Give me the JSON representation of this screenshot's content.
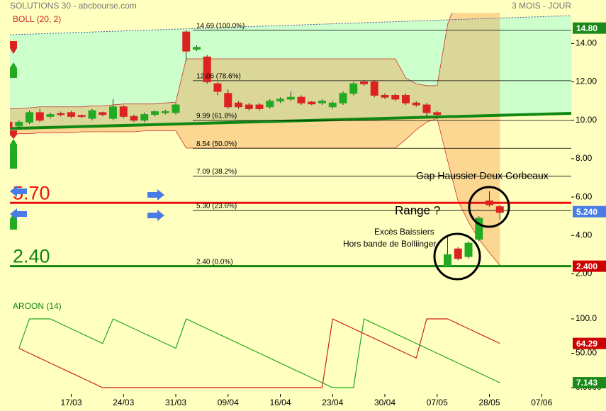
{
  "chart_data": [
    {
      "type": "candlestick",
      "title": "SOLUTIONS 30 - abcbourse.com",
      "period": "3 MOIS - JOUR",
      "indicator": "BOLL (20, 2)",
      "ylim": [
        1.5,
        15.6
      ],
      "yticks": [
        {
          "value": 14,
          "label": "14.00"
        },
        {
          "value": 12,
          "label": "12.00"
        },
        {
          "value": 10,
          "label": "10.00"
        },
        {
          "value": 8,
          "label": "8.00"
        },
        {
          "value": 6,
          "label": "6.00"
        },
        {
          "value": 4,
          "label": "4.00"
        },
        {
          "value": 2,
          "label": "2.00"
        }
      ],
      "open": [
        9.9,
        9.7,
        9.9,
        10.4,
        10.2,
        10.35,
        10.4,
        10.25,
        10.1,
        10.4,
        10.1,
        10.7,
        10.2,
        10.0,
        10.3,
        10.4,
        10.4,
        14.6,
        13.7,
        13.3,
        11.9,
        11.4,
        10.9,
        10.8,
        10.8,
        10.7,
        11.0,
        11.1,
        11.2,
        10.95,
        10.9,
        10.7,
        10.9,
        11.4,
        12.0,
        12.0,
        11.3,
        11.3,
        11.3,
        10.9,
        10.8,
        10.4,
        2.4,
        3.3,
        2.9,
        3.8,
        5.8,
        5.5
      ],
      "high": [
        10.0,
        10.0,
        10.5,
        10.6,
        10.4,
        10.45,
        10.5,
        10.3,
        10.6,
        10.45,
        11.1,
        10.8,
        10.3,
        10.4,
        10.5,
        10.55,
        10.9,
        14.7,
        13.9,
        13.4,
        12.0,
        11.6,
        11.0,
        10.9,
        10.9,
        11.1,
        11.2,
        11.5,
        11.3,
        11.0,
        11.1,
        11.0,
        11.5,
        12.0,
        12.1,
        12.1,
        11.4,
        11.4,
        11.4,
        11.0,
        10.9,
        10.5,
        4.0,
        3.4,
        3.7,
        5.0,
        6.3,
        5.6
      ],
      "low": [
        9.4,
        9.6,
        9.8,
        9.9,
        10.1,
        10.2,
        10.1,
        10.1,
        10.0,
        10.2,
        10.0,
        10.1,
        9.9,
        9.9,
        10.2,
        10.3,
        10.3,
        13.1,
        13.6,
        11.9,
        11.3,
        10.6,
        10.6,
        10.5,
        10.5,
        10.6,
        10.9,
        11.0,
        10.8,
        10.8,
        10.8,
        10.6,
        10.8,
        11.3,
        11.8,
        11.2,
        11.1,
        11.0,
        10.8,
        10.7,
        10.2,
        10.2,
        2.4,
        2.7,
        2.8,
        3.7,
        5.5,
        4.8
      ],
      "close": [
        9.6,
        9.9,
        10.4,
        10.0,
        10.3,
        10.3,
        10.2,
        10.2,
        10.5,
        10.3,
        10.7,
        10.2,
        10.0,
        10.3,
        10.45,
        10.45,
        10.8,
        13.6,
        13.8,
        12.0,
        11.5,
        10.7,
        10.7,
        10.6,
        10.6,
        11.0,
        11.1,
        11.2,
        10.9,
        10.85,
        11.0,
        10.9,
        11.4,
        11.9,
        11.9,
        11.3,
        11.2,
        11.1,
        10.9,
        10.8,
        10.4,
        10.3,
        3.0,
        2.8,
        3.6,
        4.9,
        5.6,
        5.2
      ],
      "up_color": "#22aa22",
      "down_color": "#dd2222",
      "bollinger": {
        "color": "#cc3333",
        "upper": [
          10.6,
          10.6,
          10.65,
          10.7,
          10.7,
          10.7,
          10.7,
          10.7,
          10.75,
          10.75,
          10.8,
          10.85,
          10.85,
          10.85,
          10.85,
          10.9,
          10.95,
          13.2,
          13.2,
          13.2,
          13.2,
          13.2,
          13.2,
          13.2,
          13.2,
          13.2,
          13.2,
          13.2,
          13.2,
          13.2,
          13.2,
          13.2,
          13.2,
          13.2,
          13.2,
          13.2,
          13.2,
          13.2,
          12.2,
          11.9,
          11.8,
          11.8,
          15.0,
          16.5,
          17.5,
          18.0,
          18.5,
          19.0
        ],
        "lower": [
          9.2,
          9.3,
          9.3,
          9.35,
          9.35,
          9.35,
          9.35,
          9.4,
          9.4,
          9.4,
          9.4,
          9.4,
          9.4,
          9.45,
          9.45,
          9.45,
          9.45,
          8.55,
          8.55,
          8.55,
          8.55,
          8.55,
          8.55,
          8.55,
          8.55,
          8.55,
          8.55,
          8.55,
          8.55,
          8.55,
          8.55,
          8.55,
          8.55,
          8.55,
          8.55,
          8.55,
          8.55,
          8.55,
          9.0,
          9.5,
          9.9,
          10.1,
          7.9,
          5.8,
          4.7,
          3.8,
          3.1,
          2.45
        ]
      },
      "trendlines": [
        {
          "start": 14.45,
          "end": 15.45,
          "color": "#4455aa",
          "dashed": true
        },
        {
          "start": 9.57,
          "end": 10.36,
          "color": "#118811",
          "dashed": false
        }
      ],
      "levels": [
        {
          "value": 14.69,
          "label": "14.69  (100.0%)"
        },
        {
          "value": 12.06,
          "label": "12.06  (78.6%)"
        },
        {
          "value": 9.99,
          "label": "9.99  (61.8%)"
        },
        {
          "value": 8.54,
          "label": "8.54  (50.0%)"
        },
        {
          "value": 7.09,
          "label": "7.09  (38.2%)"
        },
        {
          "value": 5.3,
          "label": "5.30  (23.6%)"
        },
        {
          "value": 2.4,
          "label": "2.40  (0.0%)"
        }
      ],
      "supports": [
        {
          "value": 5.7,
          "label": "5.70",
          "color": "#ee1111"
        },
        {
          "value": 2.4,
          "label": "2.40",
          "color": "#118811"
        }
      ],
      "tags": [
        {
          "value": 14.8,
          "label": "14.80",
          "color": "#1a8a1a"
        },
        {
          "value": 5.24,
          "label": "5.240",
          "color": "#4a7ce8"
        },
        {
          "value": 2.4,
          "label": "2.400",
          "color": "#cc0000"
        }
      ],
      "annotations": [
        "Gap Haussier Deux Corbeaux",
        "Range ?",
        "Excès Baissiers",
        "Hors bande de Bolliinger"
      ]
    },
    {
      "type": "line",
      "title": "AROON (14)",
      "ylim": [
        0,
        100
      ],
      "yticks": [
        {
          "value": 100,
          "label": "100.0"
        },
        {
          "value": 50,
          "label": "50.00"
        },
        {
          "value": 0,
          "label": "0.0000"
        }
      ],
      "xticks": [
        {
          "value": 6,
          "label": "17/03"
        },
        {
          "value": 11,
          "label": "24/03"
        },
        {
          "value": 16,
          "label": "31/03"
        },
        {
          "value": 21,
          "label": "09/04"
        },
        {
          "value": 26,
          "label": "16/04"
        },
        {
          "value": 31,
          "label": "23/04"
        },
        {
          "value": 36,
          "label": "30/04"
        },
        {
          "value": 41,
          "label": "07/05"
        },
        {
          "value": 46,
          "label": "28/05"
        },
        {
          "value": 51,
          "label": "07/06"
        }
      ],
      "series": [
        {
          "color": "#22aa22",
          "values": [
            null,
            57.14,
            100,
            100,
            100,
            92.86,
            85.71,
            78.57,
            71.43,
            64.29,
            100,
            92.86,
            85.71,
            78.57,
            71.43,
            64.29,
            57.14,
            100,
            92.86,
            85.71,
            78.57,
            71.43,
            64.29,
            57.14,
            50,
            42.86,
            35.71,
            28.57,
            21.43,
            14.29,
            7.14,
            0,
            0,
            0,
            100,
            92.86,
            85.71,
            78.57,
            71.43,
            64.29,
            57.14,
            50,
            42.86,
            35.71,
            28.57,
            21.43,
            14.29,
            7.143
          ]
        },
        {
          "color": "#cc2222",
          "values": [
            null,
            57.14,
            50,
            42.86,
            35.71,
            28.57,
            21.43,
            14.29,
            7.14,
            0,
            0,
            0,
            0,
            0,
            0,
            0,
            0,
            0,
            0,
            0,
            0,
            0,
            0,
            0,
            0,
            0,
            0,
            0,
            0,
            0,
            0,
            100,
            92.86,
            85.71,
            78.57,
            71.43,
            64.29,
            57.14,
            50,
            42.86,
            100,
            100,
            100,
            92.86,
            85.71,
            78.57,
            71.43,
            64.29
          ]
        }
      ],
      "tags": [
        {
          "value": 64.29,
          "label": "64.29",
          "color": "#cc0000"
        },
        {
          "value": 7.143,
          "label": "7.143",
          "color": "#1a8a1a"
        }
      ]
    }
  ]
}
